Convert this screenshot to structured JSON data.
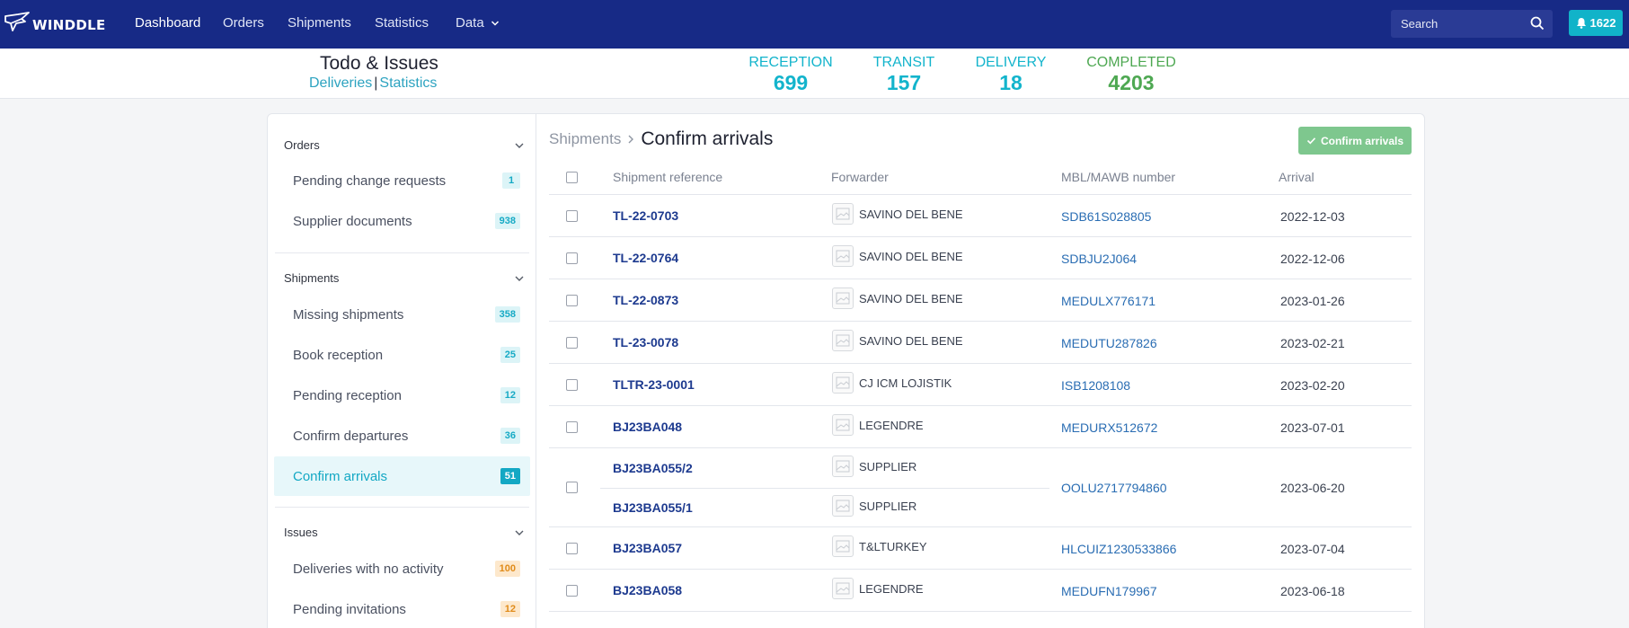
{
  "app": {
    "logo_text": "WINDDLE"
  },
  "nav": {
    "items": [
      {
        "label": "Dashboard"
      },
      {
        "label": "Orders"
      },
      {
        "label": "Shipments"
      },
      {
        "label": "Statistics"
      },
      {
        "label": "Data"
      }
    ],
    "search_placeholder": "Search",
    "notifications_count": "1622"
  },
  "summary": {
    "title": "Todo & Issues",
    "link_deliveries": "Deliveries",
    "link_separator": "|",
    "link_statistics": "Statistics",
    "stats": [
      {
        "label": "RECEPTION",
        "value": "699",
        "color": "#13b4cc"
      },
      {
        "label": "TRANSIT",
        "value": "157",
        "color": "#13b4cc"
      },
      {
        "label": "DELIVERY",
        "value": "18",
        "color": "#13b4cc"
      },
      {
        "label": "COMPLETED",
        "value": "4203",
        "color": "#4ea852"
      }
    ]
  },
  "sidebar": {
    "sections": [
      {
        "title": "Orders",
        "items": [
          {
            "label": "Pending change requests",
            "count": "1"
          },
          {
            "label": "Supplier documents",
            "count": "938"
          }
        ]
      },
      {
        "title": "Shipments",
        "items": [
          {
            "label": "Missing shipments",
            "count": "358"
          },
          {
            "label": "Book reception",
            "count": "25"
          },
          {
            "label": "Pending reception",
            "count": "12"
          },
          {
            "label": "Confirm departures",
            "count": "36"
          },
          {
            "label": "Confirm arrivals",
            "count": "51"
          }
        ]
      },
      {
        "title": "Issues",
        "items": [
          {
            "label": "Deliveries with no activity",
            "count": "100"
          },
          {
            "label": "Pending invitations",
            "count": "12"
          }
        ]
      }
    ]
  },
  "content": {
    "breadcrumb_parent": "Shipments",
    "title": "Confirm arrivals",
    "confirm_button": "Confirm arrivals",
    "columns": [
      "Shipment reference",
      "Forwarder",
      "MBL/MAWB number",
      "Arrival"
    ],
    "rows": [
      {
        "ref": "TL-22-0703",
        "forwarder": "SAVINO DEL BENE",
        "mbl": "SDB61S028805",
        "arrival": "2022-12-03"
      },
      {
        "ref": "TL-22-0764",
        "forwarder": "SAVINO DEL BENE",
        "mbl": "SDBJU2J064",
        "arrival": "2022-12-06"
      },
      {
        "ref": "TL-22-0873",
        "forwarder": "SAVINO DEL BENE",
        "mbl": "MEDULX776171",
        "arrival": "2023-01-26"
      },
      {
        "ref": "TL-23-0078",
        "forwarder": "SAVINO DEL BENE",
        "mbl": "MEDUTU287826",
        "arrival": "2023-02-21"
      },
      {
        "ref": "TLTR-23-0001",
        "forwarder": "CJ ICM LOJISTIK",
        "mbl": "ISB1208108",
        "arrival": "2023-02-20"
      },
      {
        "ref": "BJ23BA048",
        "forwarder": "LEGENDRE",
        "mbl": "MEDURX512672",
        "arrival": "2023-07-01"
      },
      {
        "ref": "BJ23BA055/2",
        "forwarder": "SUPPLIER",
        "ref2": "BJ23BA055/1",
        "forwarder2": "SUPPLIER",
        "mbl": "OOLU2717794860",
        "arrival": "2023-06-20"
      },
      {
        "ref": "BJ23BA057",
        "forwarder": "T&LTURKEY",
        "mbl": "HLCUIZ1230533866",
        "arrival": "2023-07-04"
      },
      {
        "ref": "BJ23BA058",
        "forwarder": "LEGENDRE",
        "mbl": "MEDUFN179967",
        "arrival": "2023-06-18"
      }
    ]
  }
}
